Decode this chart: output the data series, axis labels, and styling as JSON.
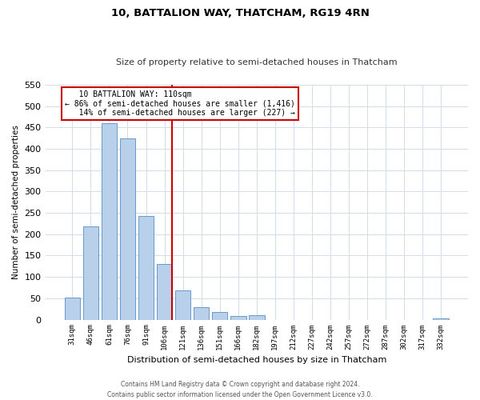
{
  "title": "10, BATTALION WAY, THATCHAM, RG19 4RN",
  "subtitle": "Size of property relative to semi-detached houses in Thatcham",
  "xlabel": "Distribution of semi-detached houses by size in Thatcham",
  "ylabel": "Number of semi-detached properties",
  "bar_labels": [
    "31sqm",
    "46sqm",
    "61sqm",
    "76sqm",
    "91sqm",
    "106sqm",
    "121sqm",
    "136sqm",
    "151sqm",
    "166sqm",
    "182sqm",
    "197sqm",
    "212sqm",
    "227sqm",
    "242sqm",
    "257sqm",
    "272sqm",
    "287sqm",
    "302sqm",
    "317sqm",
    "332sqm"
  ],
  "bar_values": [
    52,
    218,
    460,
    425,
    243,
    130,
    68,
    29,
    18,
    9,
    10,
    0,
    0,
    0,
    0,
    0,
    0,
    0,
    0,
    0,
    2
  ],
  "property_bin_index": 5,
  "property_label": "10 BATTALION WAY: 110sqm",
  "pct_smaller": 86,
  "count_smaller": 1416,
  "pct_larger": 14,
  "count_larger": 227,
  "bar_color": "#b8d0ea",
  "bar_edge_color": "#6699cc",
  "highlight_color": "#cc0000",
  "annotation_box_edge": "#cc0000",
  "ylim": [
    0,
    550
  ],
  "yticks": [
    0,
    50,
    100,
    150,
    200,
    250,
    300,
    350,
    400,
    450,
    500,
    550
  ],
  "footer1": "Contains HM Land Registry data © Crown copyright and database right 2024.",
  "footer2": "Contains public sector information licensed under the Open Government Licence v3.0."
}
